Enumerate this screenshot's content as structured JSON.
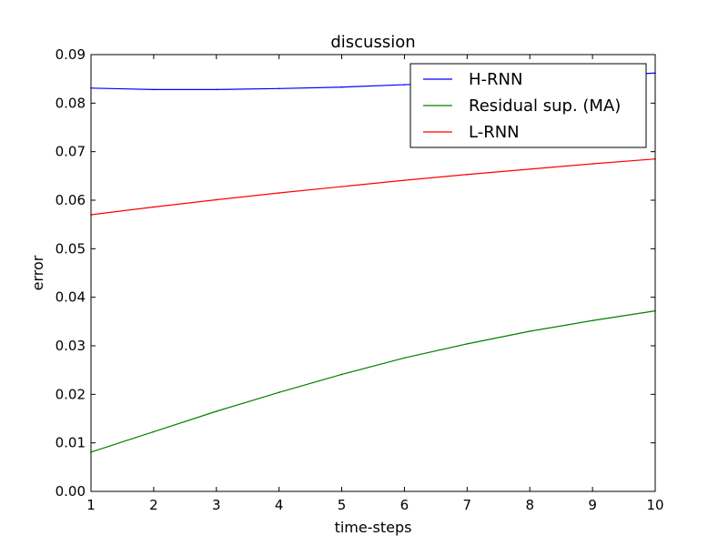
{
  "chart_data": {
    "type": "line",
    "title": "discussion",
    "xlabel": "time-steps",
    "ylabel": "error",
    "x": [
      1,
      2,
      3,
      4,
      5,
      6,
      7,
      8,
      9,
      10
    ],
    "xlim": [
      1,
      10
    ],
    "ylim": [
      0,
      0.09
    ],
    "xticks": [
      "1",
      "2",
      "3",
      "4",
      "5",
      "6",
      "7",
      "8",
      "9",
      "10"
    ],
    "yticks": [
      "0.00",
      "0.01",
      "0.02",
      "0.03",
      "0.04",
      "0.05",
      "0.06",
      "0.07",
      "0.08",
      "0.09"
    ],
    "grid": false,
    "legend_position": "top-right",
    "series": [
      {
        "name": "H-RNN",
        "color": "#0000ff",
        "values": [
          0.0831,
          0.0828,
          0.0828,
          0.083,
          0.0833,
          0.0838,
          0.0843,
          0.0849,
          0.0855,
          0.0862
        ]
      },
      {
        "name": "Residual sup. (MA)",
        "color": "#008000",
        "values": [
          0.0081,
          0.0123,
          0.0165,
          0.0204,
          0.0241,
          0.0275,
          0.0304,
          0.033,
          0.0352,
          0.0372
        ]
      },
      {
        "name": "L-RNN",
        "color": "#ff0000",
        "values": [
          0.057,
          0.0586,
          0.0601,
          0.0615,
          0.0628,
          0.0641,
          0.0653,
          0.0664,
          0.0675,
          0.0685
        ]
      }
    ]
  }
}
